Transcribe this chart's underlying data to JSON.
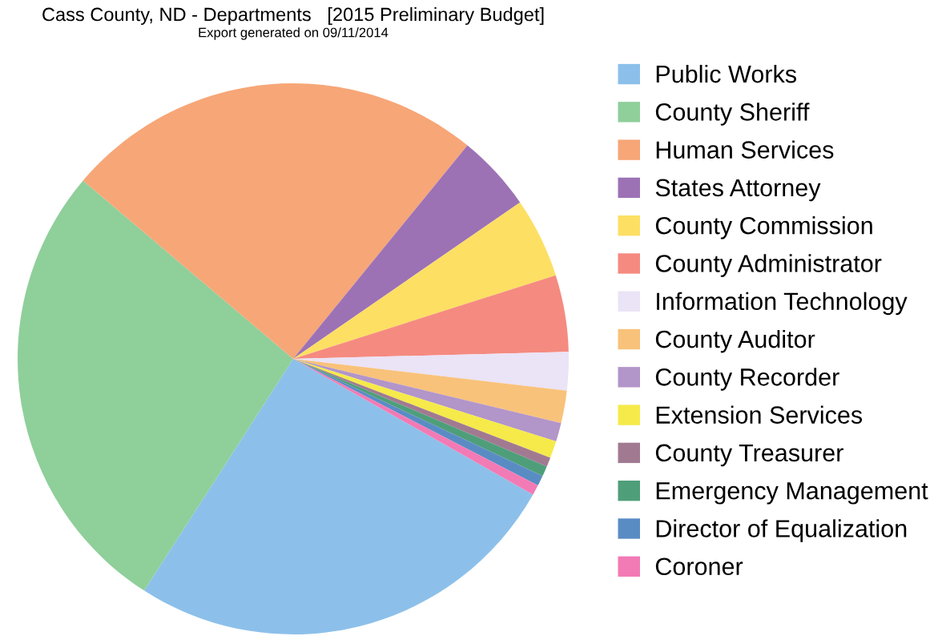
{
  "chart_data": {
    "type": "pie",
    "title": "Cass County, ND - Departments   [2015 Preliminary Budget]",
    "subtitle": "Export generated on 09/11/2014",
    "categories": [
      "Public Works",
      "County Sheriff",
      "Human Services",
      "States Attorney",
      "County Commission",
      "County Administrator",
      "Information Technology",
      "County Auditor",
      "County Recorder",
      "Extension Services",
      "County Treasurer",
      "Emergency Management",
      "Director of Equalization",
      "Coroner"
    ],
    "values": [
      25.9,
      27.1,
      24.7,
      4.5,
      4.7,
      4.5,
      2.25,
      1.9,
      1.1,
      1.0,
      0.55,
      0.6,
      0.6,
      0.6
    ],
    "colors": [
      "#8cc0ea",
      "#8fcf9a",
      "#f7a677",
      "#9c72b5",
      "#fddf63",
      "#f58a80",
      "#ebe3f6",
      "#f8c27a",
      "#b295c9",
      "#f5ea4a",
      "#a17a92",
      "#4f9e7a",
      "#5a8cc4",
      "#f27ab5"
    ],
    "legend": "right"
  }
}
